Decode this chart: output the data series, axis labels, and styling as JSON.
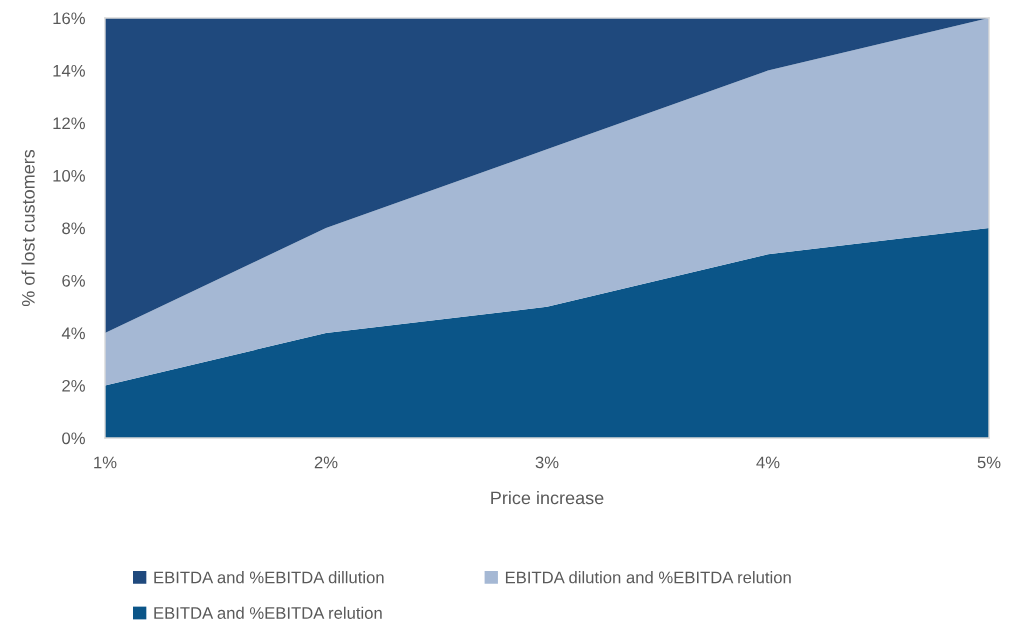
{
  "chart_data": {
    "type": "area",
    "stacked": true,
    "xlabel": "Price increase",
    "ylabel": "% of lost customers",
    "categories": [
      "1%",
      "2%",
      "3%",
      "4%",
      "5%"
    ],
    "series": [
      {
        "name": "EBITDA and %EBITDA relution",
        "color": "#0b5588",
        "values": [
          2,
          4,
          5,
          7,
          8
        ]
      },
      {
        "name": "EBITDA dilution and %EBITDA relution",
        "color": "#a5b8d4",
        "values": [
          2,
          4,
          6,
          7,
          8
        ]
      },
      {
        "name": "EBITDA and %EBITDA dillution",
        "color": "#1f497d",
        "values": [
          12,
          8,
          5,
          2,
          0
        ]
      }
    ],
    "ylim": [
      0,
      16
    ],
    "yticks": [
      {
        "value": 0,
        "label": "0%"
      },
      {
        "value": 2,
        "label": "2%"
      },
      {
        "value": 4,
        "label": "4%"
      },
      {
        "value": 6,
        "label": "6%"
      },
      {
        "value": 8,
        "label": "8%"
      },
      {
        "value": 10,
        "label": "10%"
      },
      {
        "value": 12,
        "label": "12%"
      },
      {
        "value": 14,
        "label": "14%"
      },
      {
        "value": 16,
        "label": "16%"
      }
    ],
    "legend": "bottom"
  }
}
